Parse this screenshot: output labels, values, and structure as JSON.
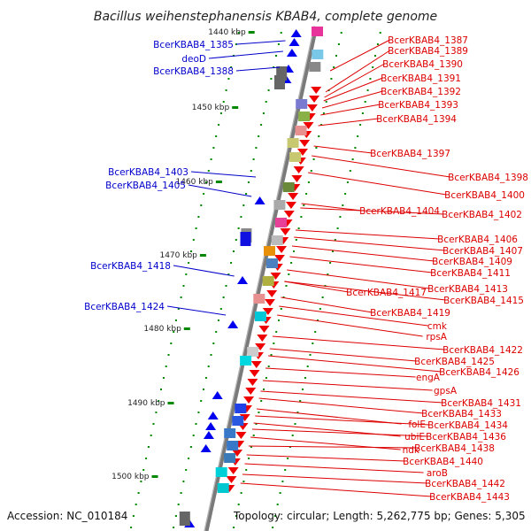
{
  "title": "Bacillus weihenstephanensis KBAB4, complete genome",
  "accession": "Accession: NC_010184",
  "summary": "Topology: circular; Length: 5,262,775 bp; Genes: 5,305",
  "colors": {
    "left_label": "#0000cc",
    "right_label": "#dd0000",
    "forward_gene": "#0000ee",
    "reverse_gene": "#ee0000",
    "backbone": "#888888",
    "tick": "#008800"
  },
  "ticks": [
    "1440 kbp",
    "1450 kbp",
    "1460 kbp",
    "1470 kbp",
    "1480 kbp",
    "1490 kbp",
    "1500 kbp"
  ],
  "left_labels": [
    "BcerKBAB4_1385",
    "deoD",
    "BcerKBAB4_1388",
    "BcerKBAB4_1403",
    "BcerKBAB4_1405",
    "BcerKBAB4_1418",
    "BcerKBAB4_1424"
  ],
  "right_labels": [
    "BcerKBAB4_1387",
    "BcerKBAB4_1389",
    "BcerKBAB4_1390",
    "BcerKBAB4_1391",
    "BcerKBAB4_1392",
    "BcerKBAB4_1393",
    "BcerKBAB4_1394",
    "BcerKBAB4_1397",
    "BcerKBAB4_1398",
    "BcerKBAB4_1400",
    "BcerKBAB4_1404",
    "BcerKBAB4_1402",
    "BcerKBAB4_1406",
    "BcerKBAB4_1407",
    "BcerKBAB4_1409",
    "BcerKBAB4_1411",
    "BcerKBAB4_1413",
    "BcerKBAB4_1417",
    "BcerKBAB4_1415",
    "BcerKBAB4_1419",
    "cmk",
    "rpsA",
    "BcerKBAB4_1422",
    "BcerKBAB4_1425",
    "BcerKBAB4_1426",
    "engA",
    "gpsA",
    "BcerKBAB4_1431",
    "BcerKBAB4_1433",
    "folE",
    "BcerKBAB4_1434",
    "ubiE",
    "BcerKBAB4_1436",
    "ndk",
    "BcerKBAB4_1438",
    "BcerKBAB4_1440",
    "aroB",
    "BcerKBAB4_1442",
    "BcerKBAB4_1443"
  ]
}
